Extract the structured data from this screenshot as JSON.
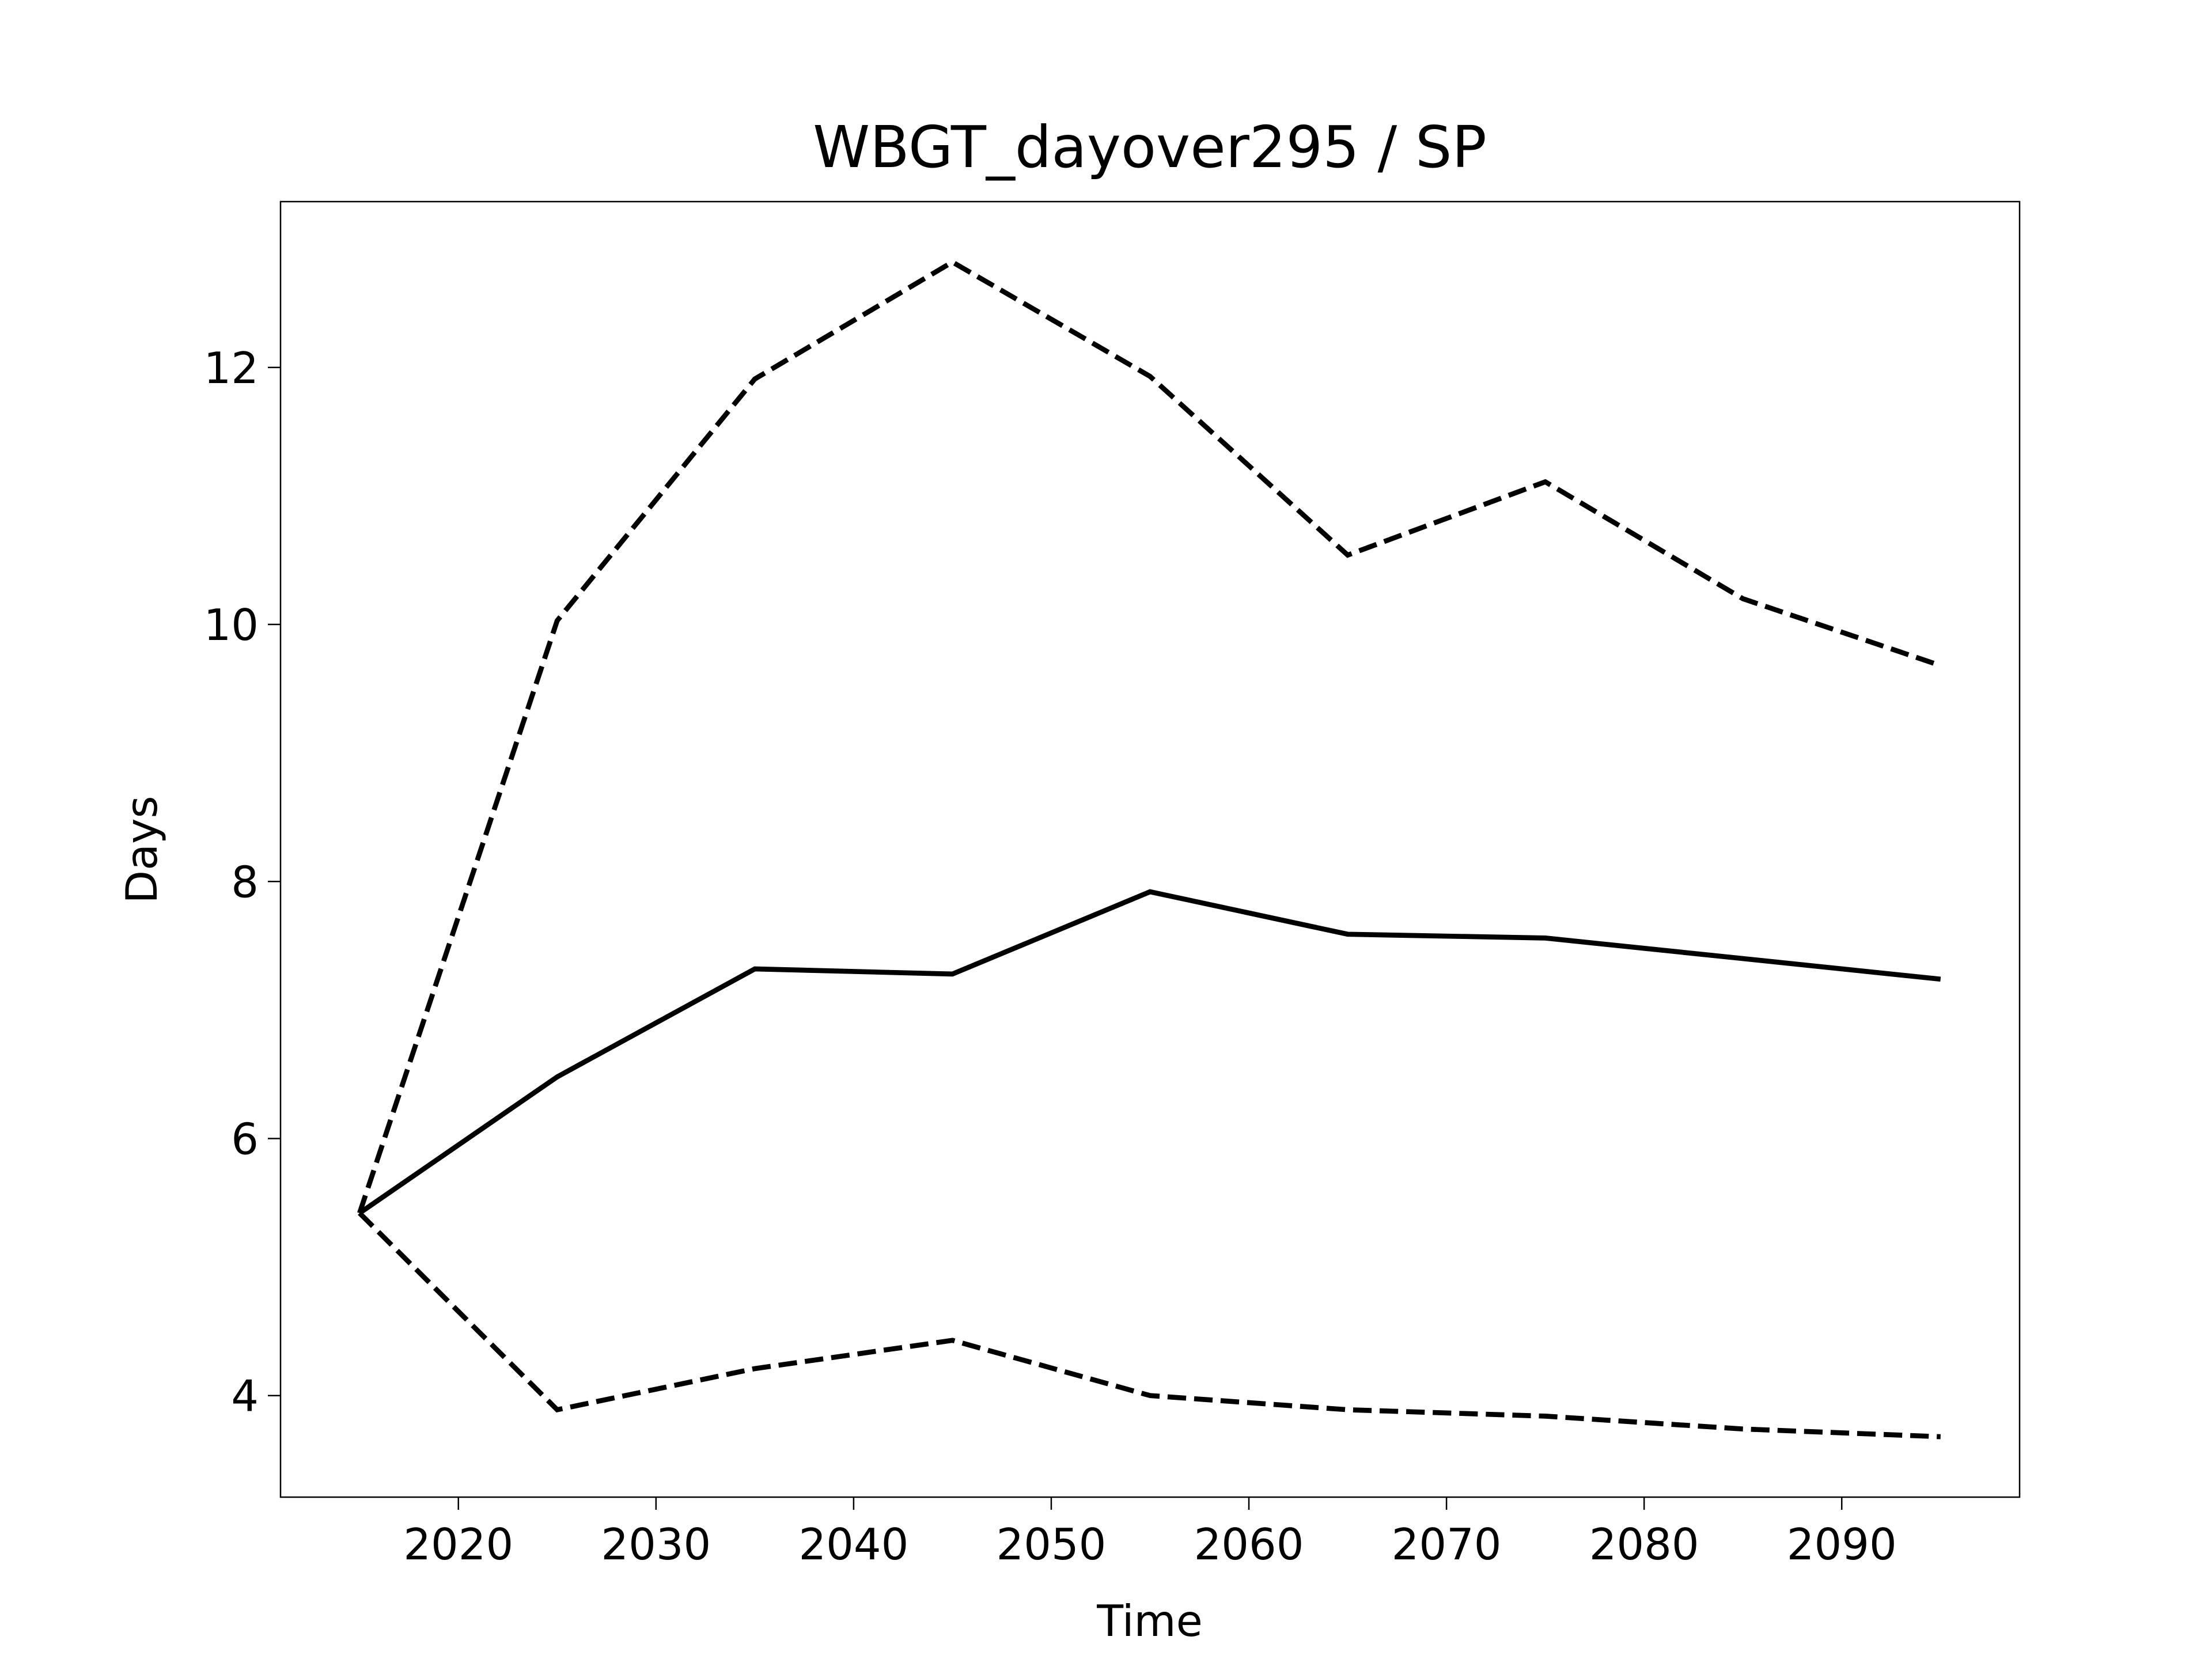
{
  "chart_data": {
    "type": "line",
    "title": "WBGT_dayover295 / SP",
    "xlabel": "Time",
    "ylabel": "Days",
    "x": [
      2015,
      2025,
      2035,
      2045,
      2055,
      2065,
      2075,
      2085,
      2095
    ],
    "series": [
      {
        "color": "#000000",
        "linestyle": "solid",
        "values": [
          5.42,
          6.48,
          7.32,
          7.28,
          7.92,
          7.59,
          7.56,
          7.4,
          7.24
        ]
      },
      {
        "color": "#000000",
        "linestyle": "dashed",
        "values": [
          5.42,
          10.03,
          11.91,
          12.82,
          11.93,
          10.54,
          11.11,
          10.2,
          9.68
        ]
      },
      {
        "color": "#000000",
        "linestyle": "dashed",
        "values": [
          5.42,
          3.89,
          4.21,
          4.43,
          4.0,
          3.89,
          3.84,
          3.74,
          3.68
        ]
      }
    ],
    "xlim": [
      2011,
      2099
    ],
    "ylim": [
      3.21,
      13.29
    ],
    "xticks": [
      2020,
      2030,
      2040,
      2050,
      2060,
      2070,
      2080,
      2090
    ],
    "yticks": [
      4,
      6,
      8,
      10,
      12
    ],
    "grid": false
  }
}
